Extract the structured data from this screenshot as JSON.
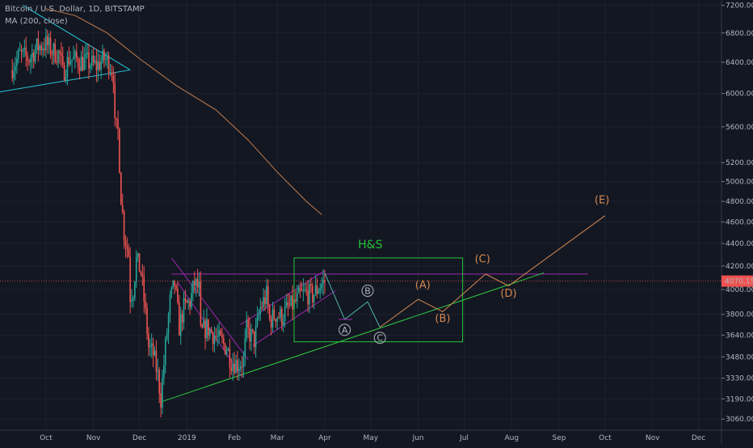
{
  "header": {
    "symbol_line": "Bitcoin / U.S. Dollar, 1D, BITSTAMP",
    "indicator_line": "MA (200, close)"
  },
  "chart_data": {
    "type": "line",
    "subtype": "candlestick-with-projections",
    "title": "Bitcoin / U.S. Dollar, 1D, BITSTAMP",
    "xlabel": "",
    "ylabel": "",
    "ylim": [
      3000,
      7200
    ],
    "y_scale": "log",
    "grid": true,
    "legend": "none",
    "y_ticks": [
      7200,
      6800,
      6400,
      6000,
      5600,
      5200,
      5000,
      4800,
      4600,
      4400,
      4200,
      4000,
      3800,
      3640,
      3480,
      3330,
      3190,
      3060
    ],
    "y_tick_labels": [
      "7200.00",
      "6800.00",
      "6400.00",
      "6000.00",
      "5600.00",
      "5200.00",
      "5000.00",
      "4800.00",
      "4600.00",
      "4400.00",
      "4200.00",
      "4000.00",
      "3800.00",
      "3640.00",
      "3480.00",
      "3330.00",
      "3190.00",
      "3060.00"
    ],
    "x_ticks": [
      {
        "label": "Oct",
        "date": "2018-10-01"
      },
      {
        "label": "Nov",
        "date": "2018-11-01"
      },
      {
        "label": "Dec",
        "date": "2018-12-01"
      },
      {
        "label": "2019",
        "date": "2019-01-01"
      },
      {
        "label": "Feb",
        "date": "2019-02-01"
      },
      {
        "label": "Mar",
        "date": "2019-03-01"
      },
      {
        "label": "Apr",
        "date": "2019-04-01"
      },
      {
        "label": "May",
        "date": "2019-05-01"
      },
      {
        "label": "Jun",
        "date": "2019-06-01"
      },
      {
        "label": "Jul",
        "date": "2019-07-01"
      },
      {
        "label": "Aug",
        "date": "2019-08-01"
      },
      {
        "label": "Sep",
        "date": "2019-09-01"
      },
      {
        "label": "Oct",
        "date": "2019-10-01"
      },
      {
        "label": "Nov",
        "date": "2019-11-01"
      },
      {
        "label": "Dec",
        "date": "2019-12-01"
      }
    ],
    "price_series": [
      {
        "date": "2018-09-08",
        "close": 6300
      },
      {
        "date": "2018-09-14",
        "close": 6500
      },
      {
        "date": "2018-09-20",
        "close": 6450
      },
      {
        "date": "2018-09-25",
        "close": 6600
      },
      {
        "date": "2018-10-01",
        "close": 6650
      },
      {
        "date": "2018-10-05",
        "close": 6550
      },
      {
        "date": "2018-10-10",
        "close": 6500
      },
      {
        "date": "2018-10-12",
        "close": 6250
      },
      {
        "date": "2018-10-16",
        "close": 6450
      },
      {
        "date": "2018-10-22",
        "close": 6420
      },
      {
        "date": "2018-10-28",
        "close": 6400
      },
      {
        "date": "2018-11-03",
        "close": 6350
      },
      {
        "date": "2018-11-08",
        "close": 6450
      },
      {
        "date": "2018-11-11",
        "close": 6400
      },
      {
        "date": "2018-11-14",
        "close": 6250
      },
      {
        "date": "2018-11-15",
        "close": 5600
      },
      {
        "date": "2018-11-17",
        "close": 5550
      },
      {
        "date": "2018-11-19",
        "close": 4850
      },
      {
        "date": "2018-11-21",
        "close": 4500
      },
      {
        "date": "2018-11-24",
        "close": 4300
      },
      {
        "date": "2018-11-25",
        "close": 3950
      },
      {
        "date": "2018-11-27",
        "close": 4000
      },
      {
        "date": "2018-11-29",
        "close": 4250
      },
      {
        "date": "2018-12-02",
        "close": 4150
      },
      {
        "date": "2018-12-05",
        "close": 3800
      },
      {
        "date": "2018-12-07",
        "close": 3550
      },
      {
        "date": "2018-12-10",
        "close": 3500
      },
      {
        "date": "2018-12-13",
        "close": 3350
      },
      {
        "date": "2018-12-15",
        "close": 3190
      },
      {
        "date": "2018-12-18",
        "close": 3550
      },
      {
        "date": "2018-12-21",
        "close": 3900
      },
      {
        "date": "2018-12-24",
        "close": 4050
      },
      {
        "date": "2018-12-27",
        "close": 3700
      },
      {
        "date": "2018-12-30",
        "close": 3850
      },
      {
        "date": "2019-01-03",
        "close": 3900
      },
      {
        "date": "2019-01-06",
        "close": 4050
      },
      {
        "date": "2019-01-09",
        "close": 4000
      },
      {
        "date": "2019-01-10",
        "close": 3650
      },
      {
        "date": "2019-01-14",
        "close": 3700
      },
      {
        "date": "2019-01-18",
        "close": 3650
      },
      {
        "date": "2019-01-22",
        "close": 3600
      },
      {
        "date": "2019-01-27",
        "close": 3550
      },
      {
        "date": "2019-01-30",
        "close": 3450
      },
      {
        "date": "2019-02-03",
        "close": 3430
      },
      {
        "date": "2019-02-07",
        "close": 3450
      },
      {
        "date": "2019-02-09",
        "close": 3680
      },
      {
        "date": "2019-02-14",
        "close": 3600
      },
      {
        "date": "2019-02-18",
        "close": 3850
      },
      {
        "date": "2019-02-22",
        "close": 3950
      },
      {
        "date": "2019-02-24",
        "close": 3750
      },
      {
        "date": "2019-02-28",
        "close": 3800
      },
      {
        "date": "2019-03-04",
        "close": 3780
      },
      {
        "date": "2019-03-08",
        "close": 3850
      },
      {
        "date": "2019-03-12",
        "close": 3880
      },
      {
        "date": "2019-03-16",
        "close": 3950
      },
      {
        "date": "2019-03-20",
        "close": 3970
      },
      {
        "date": "2019-03-24",
        "close": 3950
      },
      {
        "date": "2019-03-28",
        "close": 4020
      },
      {
        "date": "2019-04-01",
        "close": 4070
      }
    ],
    "moving_average_200": [
      {
        "date": "2018-10-01",
        "value": 7150
      },
      {
        "date": "2018-10-20",
        "value": 7050
      },
      {
        "date": "2018-11-10",
        "value": 6800
      },
      {
        "date": "2018-12-01",
        "value": 6450
      },
      {
        "date": "2018-12-25",
        "value": 6100
      },
      {
        "date": "2019-01-20",
        "value": 5800
      },
      {
        "date": "2019-02-10",
        "value": 5450
      },
      {
        "date": "2019-03-01",
        "value": 5100
      },
      {
        "date": "2019-03-20",
        "value": 4800
      },
      {
        "date": "2019-03-30",
        "value": 4670
      }
    ],
    "last_price_label": "4070.15",
    "last_price": 4070.15,
    "drawings": {
      "resistance_level": 4130,
      "hs_label": "H&S",
      "hs_box": {
        "from": "2019-03-12",
        "to": "2019-06-30",
        "top": 4270,
        "bottom": 3590
      },
      "support_line": [
        {
          "date": "2018-12-15",
          "price": 3170
        },
        {
          "date": "2019-08-22",
          "price": 4140
        }
      ],
      "abc_path": [
        {
          "date": "2019-04-01",
          "price": 4140
        },
        {
          "date": "2019-04-14",
          "price": 3760
        },
        {
          "date": "2019-04-29",
          "price": 3900
        },
        {
          "date": "2019-05-07",
          "price": 3700
        }
      ],
      "abc_labels": [
        {
          "label": "A",
          "date": "2019-04-14",
          "price": 3680
        },
        {
          "label": "B",
          "date": "2019-04-29",
          "price": 3990
        },
        {
          "label": "C",
          "date": "2019-05-07",
          "price": 3620
        }
      ],
      "wave_path": [
        {
          "date": "2019-05-07",
          "price": 3700
        },
        {
          "date": "2019-06-01",
          "price": 3920
        },
        {
          "date": "2019-06-17",
          "price": 3820
        },
        {
          "date": "2019-07-15",
          "price": 4130
        },
        {
          "date": "2019-07-30",
          "price": 4030
        },
        {
          "date": "2019-10-01",
          "price": 4660
        }
      ],
      "wave_labels": [
        {
          "label": "(A)",
          "date": "2019-06-04",
          "price": 4010
        },
        {
          "label": "(B)",
          "date": "2019-06-17",
          "price": 3740
        },
        {
          "label": "(C)",
          "date": "2019-07-13",
          "price": 4230
        },
        {
          "label": "(D)",
          "date": "2019-07-30",
          "price": 3940
        },
        {
          "label": "(E)",
          "date": "2019-09-29",
          "price": 4780
        }
      ]
    },
    "colors": {
      "background": "#131722",
      "grid": "#1e222d",
      "up": "#26a69a",
      "down": "#ef5350",
      "ma": "#c27c4c",
      "trend_cyan": "#26c6da",
      "channel": "#9c27b0",
      "resistance": "#9c27b0",
      "support": "#2ecc40",
      "hs_box": "#27c23a",
      "abc_path": "#4db6ac",
      "wave_path": "#d4874f",
      "last_price_badge": "#ef5350"
    }
  }
}
